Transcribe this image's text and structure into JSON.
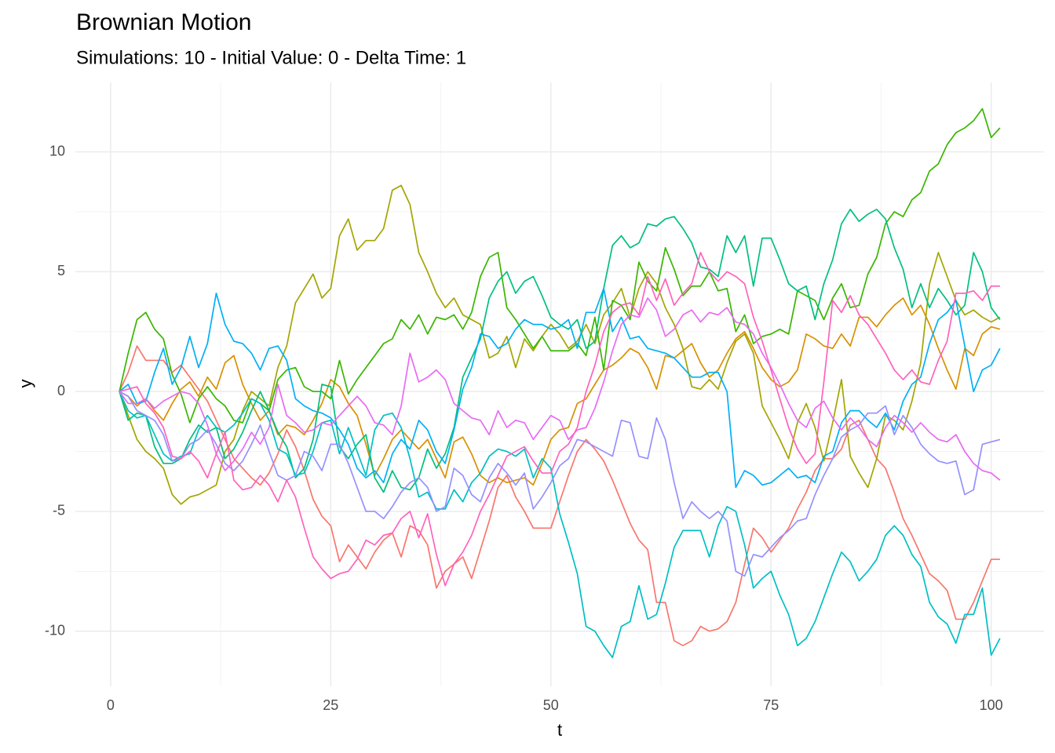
{
  "chart_data": {
    "type": "line",
    "title": "Brownian Motion",
    "subtitle": "Simulations: 10 - Initial Value: 0 - Delta Time: 1",
    "x_label": "t",
    "y_label": "y",
    "xlim": [
      -4,
      106
    ],
    "ylim": [
      -12.3,
      12.9
    ],
    "xticks": [
      0,
      25,
      50,
      75,
      100
    ],
    "yticks": [
      -10,
      -5,
      0,
      5,
      10
    ],
    "x_minor_ticks": [
      12.5,
      37.5,
      62.5,
      87.5
    ],
    "y_minor_ticks": [
      -7.5,
      -2.5,
      2.5,
      7.5
    ],
    "grid": true,
    "x": [
      1,
      2,
      3,
      4,
      5,
      6,
      7,
      8,
      9,
      10,
      11,
      12,
      13,
      14,
      15,
      16,
      17,
      18,
      19,
      20,
      21,
      22,
      23,
      24,
      25,
      26,
      27,
      28,
      29,
      30,
      31,
      32,
      33,
      34,
      35,
      36,
      37,
      38,
      39,
      40,
      41,
      42,
      43,
      44,
      45,
      46,
      47,
      48,
      49,
      50,
      51,
      52,
      53,
      54,
      55,
      56,
      57,
      58,
      59,
      60,
      61,
      62,
      63,
      64,
      65,
      66,
      67,
      68,
      69,
      70,
      71,
      72,
      73,
      74,
      75,
      76,
      77,
      78,
      79,
      80,
      81,
      82,
      83,
      84,
      85,
      86,
      87,
      88,
      89,
      90,
      91,
      92,
      93,
      94,
      95,
      96,
      97,
      98,
      99,
      100,
      101
    ],
    "series": [
      {
        "color": "#F8766D",
        "values": [
          0,
          0.8,
          1.9,
          1.3,
          1.3,
          1.3,
          0.8,
          1.1,
          0.6,
          0.1,
          -0.4,
          -1.2,
          -2.0,
          -2.8,
          -3.2,
          -3.6,
          -3.9,
          -3.4,
          -2.6,
          -1.6,
          -2.3,
          -3.3,
          -4.5,
          -5.2,
          -5.6,
          -7.1,
          -6.4,
          -6.9,
          -7.4,
          -6.7,
          -6.2,
          -5.9,
          -6.9,
          -5.6,
          -5.8,
          -6.4,
          -8.2,
          -7.5,
          -7.2,
          -6.9,
          -7.8,
          -6.6,
          -5.4,
          -4.0,
          -3.5,
          -4.4,
          -5.0,
          -5.7,
          -5.7,
          -5.7,
          -4.6,
          -3.5,
          -2.5,
          -2.0,
          -2.4,
          -2.9,
          -3.7,
          -4.6,
          -5.5,
          -6.2,
          -6.6,
          -8.8,
          -8.8,
          -10.4,
          -10.6,
          -10.4,
          -9.8,
          -10.0,
          -9.9,
          -9.6,
          -8.8,
          -7.2,
          -5.7,
          -6.1,
          -6.7,
          -6.2,
          -5.7,
          -4.9,
          -4.2,
          -3.3,
          -2.8,
          -2.8,
          -2.4,
          -1.4,
          -1.2,
          -2.0,
          -2.8,
          -3.2,
          -4.2,
          -5.3,
          -6.0,
          -6.8,
          -7.6,
          -7.9,
          -8.3,
          -9.5,
          -9.5,
          -8.8,
          -7.9,
          -7.0,
          -7.0
        ]
      },
      {
        "color": "#D89000",
        "values": [
          0,
          -0.2,
          -0.6,
          -0.3,
          -0.8,
          -1.2,
          -0.5,
          0.1,
          0.4,
          -0.2,
          0.6,
          0.1,
          1.2,
          1.5,
          0.3,
          -0.5,
          -1.2,
          -0.8,
          -1.8,
          -1.4,
          -1.5,
          -1.8,
          -1.2,
          -0.5,
          0.5,
          0.2,
          -0.5,
          -1.0,
          -2.2,
          -3.5,
          -2.8,
          -2.0,
          -1.6,
          -2.0,
          -2.4,
          -2.0,
          -2.8,
          -3.6,
          -2.1,
          -1.9,
          -2.6,
          -3.5,
          -3.8,
          -3.6,
          -3.8,
          -3.7,
          -3.6,
          -3.9,
          -3.0,
          -2.0,
          -1.6,
          -1.5,
          -0.5,
          -0.3,
          0.3,
          0.9,
          1.1,
          1.4,
          1.8,
          1.6,
          1.0,
          0.1,
          1.5,
          1.4,
          1.7,
          2.0,
          1.2,
          0.6,
          0.9,
          1.6,
          2.2,
          2.5,
          1.8,
          1.0,
          0.5,
          0.2,
          0.4,
          0.9,
          2.4,
          2.2,
          1.9,
          1.8,
          2.4,
          1.9,
          3.1,
          3.1,
          2.7,
          3.2,
          3.6,
          3.9,
          3.2,
          3.6,
          2.8,
          1.8,
          0.9,
          0.1,
          1.8,
          1.5,
          2.4,
          2.7,
          2.6
        ]
      },
      {
        "color": "#A3A500",
        "values": [
          0,
          -1.0,
          -2.0,
          -2.5,
          -2.8,
          -3.2,
          -4.3,
          -4.7,
          -4.4,
          -4.3,
          -4.1,
          -3.9,
          -2.5,
          -2.0,
          -0.8,
          0.0,
          -0.3,
          -0.6,
          1.0,
          1.9,
          3.7,
          4.3,
          4.9,
          3.9,
          4.3,
          6.5,
          7.2,
          5.9,
          6.3,
          6.3,
          6.8,
          8.4,
          8.6,
          7.8,
          5.8,
          5.0,
          4.1,
          3.5,
          3.9,
          3.2,
          3.0,
          2.8,
          1.4,
          1.6,
          2.3,
          1.0,
          2.2,
          1.7,
          2.3,
          2.8,
          2.4,
          1.8,
          2.1,
          2.8,
          2.0,
          3.2,
          3.7,
          4.3,
          3.1,
          4.3,
          5.0,
          4.5,
          3.5,
          2.8,
          1.8,
          0.2,
          0.1,
          0.5,
          0.1,
          1.2,
          2.1,
          2.4,
          1.6,
          -0.6,
          -1.3,
          -2.0,
          -2.8,
          -1.3,
          -0.5,
          -1.5,
          -2.9,
          -1.3,
          0.5,
          -2.7,
          -3.4,
          -4.0,
          -2.8,
          -1.0,
          -1.2,
          -1.6,
          -0.4,
          1.2,
          4.5,
          5.8,
          4.8,
          3.8,
          3.2,
          3.4,
          3.1,
          2.9,
          3.1
        ]
      },
      {
        "color": "#39B600",
        "values": [
          0,
          1.6,
          3.0,
          3.3,
          2.6,
          2.2,
          0.7,
          -0.1,
          -1.3,
          -0.3,
          0.2,
          -0.3,
          -0.6,
          -1.2,
          -1.3,
          -0.3,
          -0.5,
          -0.8,
          0.5,
          0.9,
          1.0,
          0.2,
          0.0,
          0.0,
          -0.3,
          1.3,
          -0.1,
          0.5,
          1.0,
          1.5,
          2.0,
          2.2,
          3.0,
          2.6,
          3.2,
          2.4,
          3.1,
          3.0,
          3.2,
          2.6,
          3.3,
          4.8,
          5.6,
          5.8,
          3.5,
          3.0,
          2.4,
          1.8,
          2.3,
          1.7,
          1.7,
          1.7,
          2.0,
          1.5,
          3.1,
          0.9,
          3.8,
          3.6,
          3.0,
          5.4,
          4.6,
          4.2,
          6.0,
          5.1,
          4.0,
          4.4,
          4.4,
          5.0,
          4.2,
          4.3,
          2.5,
          3.2,
          2.0,
          2.3,
          2.4,
          2.6,
          2.4,
          4.2,
          4.0,
          3.8,
          3.0,
          3.9,
          4.5,
          3.5,
          3.6,
          4.9,
          5.6,
          7.0,
          7.5,
          7.3,
          8.0,
          8.3,
          9.2,
          9.5,
          10.3,
          10.8,
          11.0,
          11.3,
          11.8,
          10.6,
          11.0
        ]
      },
      {
        "color": "#00BF7D",
        "values": [
          0,
          -1.2,
          -0.9,
          -1.0,
          -2.3,
          -3.0,
          -3.0,
          -2.8,
          -2.0,
          -1.4,
          -1.7,
          -1.5,
          -2.8,
          -2.4,
          -1.7,
          -0.8,
          0.0,
          -0.8,
          -1.7,
          -2.3,
          -3.6,
          -3.2,
          -2.0,
          0.3,
          0.2,
          -2.3,
          -2.8,
          -2.2,
          -1.8,
          -3.6,
          -4.2,
          -3.3,
          -4.0,
          -4.1,
          -3.6,
          -2.4,
          -3.2,
          -2.6,
          -1.5,
          0.6,
          1.4,
          2.2,
          3.9,
          4.6,
          5.0,
          4.1,
          4.6,
          4.8,
          4.0,
          3.1,
          2.8,
          2.6,
          3.0,
          1.8,
          2.1,
          4.3,
          6.1,
          6.5,
          6.0,
          6.2,
          7.0,
          6.9,
          7.2,
          7.3,
          6.8,
          6.2,
          5.2,
          5.1,
          4.8,
          6.5,
          5.8,
          6.5,
          4.4,
          6.4,
          6.4,
          5.5,
          4.5,
          4.2,
          4.4,
          3.0,
          4.5,
          5.5,
          7.0,
          7.6,
          7.1,
          7.4,
          7.6,
          7.2,
          6.0,
          5.1,
          3.5,
          4.5,
          3.5,
          4.3,
          3.8,
          3.2,
          3.6,
          5.8,
          5.0,
          3.5,
          3.0
        ]
      },
      {
        "color": "#00BFC4",
        "values": [
          0,
          -0.8,
          -1.1,
          -1.0,
          -1.8,
          -2.6,
          -2.9,
          -2.7,
          -2.6,
          -1.6,
          -1.0,
          -1.5,
          -1.7,
          -1.4,
          -0.9,
          -0.3,
          -0.5,
          -1.2,
          -2.4,
          -2.6,
          -3.5,
          -3.4,
          -2.5,
          -1.3,
          -1.2,
          -2.6,
          -1.5,
          -2.5,
          -3.5,
          -1.6,
          -1.0,
          -0.9,
          -1.5,
          -2.8,
          -4.4,
          -4.2,
          -4.9,
          -4.9,
          -4.1,
          -4.6,
          -3.8,
          -3.4,
          -2.7,
          -2.4,
          -2.5,
          -2.7,
          -2.4,
          -3.6,
          -2.8,
          -3.2,
          -5.1,
          -6.3,
          -7.6,
          -9.8,
          -10.0,
          -10.6,
          -11.1,
          -9.8,
          -9.6,
          -8.1,
          -9.5,
          -9.3,
          -8.0,
          -6.5,
          -5.8,
          -5.8,
          -5.8,
          -6.9,
          -5.6,
          -4.8,
          -5.0,
          -6.4,
          -8.2,
          -7.8,
          -7.5,
          -8.5,
          -9.3,
          -10.6,
          -10.3,
          -9.6,
          -8.6,
          -7.6,
          -6.7,
          -7.1,
          -7.9,
          -7.5,
          -7.0,
          -6.0,
          -5.6,
          -6.0,
          -6.8,
          -7.3,
          -8.8,
          -9.4,
          -9.7,
          -10.5,
          -9.3,
          -9.3,
          -8.2,
          -11.0,
          -10.3
        ]
      },
      {
        "color": "#00B0F6",
        "values": [
          0,
          0.3,
          -0.5,
          -0.4,
          0.8,
          1.8,
          0.3,
          1.0,
          2.3,
          1.0,
          2.0,
          4.1,
          2.8,
          2.1,
          2.0,
          1.6,
          0.9,
          1.8,
          1.9,
          1.3,
          -0.3,
          -0.6,
          -0.8,
          -0.9,
          -1.1,
          -1.6,
          -2.2,
          -3.2,
          -3.6,
          -3.3,
          -3.8,
          -2.6,
          -2.0,
          -2.4,
          -1.2,
          -1.6,
          -2.5,
          -3.0,
          -1.6,
          0.1,
          1.0,
          2.4,
          2.3,
          1.8,
          2.0,
          2.6,
          3.0,
          2.8,
          2.8,
          2.6,
          2.7,
          3.0,
          1.8,
          3.3,
          3.3,
          4.3,
          2.5,
          3.1,
          2.2,
          2.3,
          1.8,
          1.7,
          1.6,
          1.4,
          1.0,
          0.6,
          0.6,
          0.8,
          0.8,
          0.0,
          -4.0,
          -3.3,
          -3.5,
          -3.9,
          -3.8,
          -3.5,
          -3.2,
          -3.6,
          -3.5,
          -3.8,
          -2.7,
          -2.5,
          -1.3,
          -0.8,
          -0.8,
          -1.2,
          -1.5,
          -0.9,
          -1.6,
          -0.4,
          0.3,
          0.6,
          2.0,
          3.0,
          3.3,
          3.8,
          1.9,
          0.0,
          0.9,
          1.1,
          1.8
        ]
      },
      {
        "color": "#9590FF",
        "values": [
          0,
          -0.2,
          -0.8,
          -1.0,
          -1.2,
          -1.8,
          -2.9,
          -2.8,
          -2.2,
          -2.0,
          -1.6,
          -2.2,
          -3.0,
          -3.3,
          -2.9,
          -2.2,
          -1.4,
          -2.5,
          -3.5,
          -3.7,
          -3.5,
          -2.5,
          -2.7,
          -3.3,
          -2.2,
          -2.2,
          -3.0,
          -4.0,
          -5.0,
          -5.0,
          -5.3,
          -4.8,
          -4.2,
          -3.8,
          -3.6,
          -4.0,
          -5.0,
          -4.8,
          -3.2,
          -3.5,
          -4.3,
          -4.6,
          -3.6,
          -3.0,
          -3.4,
          -3.9,
          -3.4,
          -4.9,
          -4.4,
          -3.8,
          -3.1,
          -2.8,
          -2.0,
          -2.1,
          -2.3,
          -2.5,
          -2.7,
          -1.2,
          -1.3,
          -2.7,
          -2.8,
          -1.1,
          -2.0,
          -3.8,
          -5.3,
          -4.6,
          -5.0,
          -5.3,
          -5.0,
          -5.4,
          -7.5,
          -7.7,
          -6.8,
          -6.9,
          -6.5,
          -6.1,
          -5.8,
          -5.4,
          -5.3,
          -4.3,
          -3.5,
          -2.8,
          -1.9,
          -1.6,
          -1.4,
          -0.9,
          -0.9,
          -0.6,
          -1.8,
          -1.0,
          -1.5,
          -2.2,
          -2.6,
          -2.9,
          -3.0,
          -2.9,
          -4.3,
          -4.1,
          -2.2,
          -2.1,
          -2.0
        ]
      },
      {
        "color": "#E76BF3",
        "values": [
          0,
          -0.5,
          -0.5,
          -0.3,
          -0.7,
          -0.4,
          -0.2,
          0.0,
          -0.1,
          -0.5,
          -1.4,
          -2.6,
          -3.3,
          -2.9,
          -2.4,
          -1.7,
          -2.2,
          -1.5,
          0.3,
          -1.0,
          -1.3,
          -1.7,
          -1.6,
          -1.3,
          -1.4,
          -1.0,
          -0.6,
          -0.2,
          -0.6,
          -1.3,
          -1.4,
          -1.8,
          -0.6,
          1.6,
          0.4,
          0.6,
          0.9,
          0.5,
          -0.5,
          -0.8,
          -1.1,
          -1.2,
          -1.8,
          -0.8,
          -1.5,
          -1.2,
          -1.3,
          -2.0,
          -1.5,
          -1.0,
          -1.2,
          -2.0,
          -1.6,
          -1.5,
          -0.7,
          0.4,
          1.7,
          2.8,
          3.2,
          3.1,
          3.9,
          3.4,
          2.3,
          2.6,
          3.2,
          3.4,
          2.9,
          3.3,
          3.2,
          3.5,
          2.9,
          2.8,
          2.4,
          1.6,
          1.0,
          0.3,
          -0.5,
          -1.2,
          -1.5,
          -0.7,
          -0.4,
          -1.1,
          -1.6,
          -1.1,
          -1.5,
          -2.0,
          -2.3,
          -1.5,
          -1.0,
          -1.3,
          -1.7,
          -1.3,
          -1.7,
          -2.0,
          -2.1,
          -1.8,
          -2.5,
          -3.0,
          -3.3,
          -3.4,
          -3.7
        ]
      },
      {
        "color": "#FF62BC",
        "values": [
          0,
          0.1,
          0.2,
          -0.5,
          -0.9,
          -1.5,
          -2.7,
          -2.8,
          -2.5,
          -2.9,
          -3.6,
          -2.6,
          -1.7,
          -3.7,
          -4.1,
          -4.0,
          -3.5,
          -3.9,
          -4.6,
          -3.7,
          -4.4,
          -5.7,
          -6.9,
          -7.4,
          -7.8,
          -7.6,
          -7.5,
          -7.0,
          -6.2,
          -6.4,
          -6.0,
          -5.9,
          -5.3,
          -5.0,
          -6.1,
          -5.1,
          -6.8,
          -8.1,
          -7.2,
          -6.7,
          -6.0,
          -5.0,
          -4.3,
          -3.5,
          -2.7,
          -2.5,
          -2.3,
          -2.9,
          -3.4,
          -3.4,
          -2.5,
          -2.2,
          -1.5,
          0.0,
          1.1,
          2.5,
          3.3,
          3.6,
          3.7,
          3.2,
          4.8,
          3.8,
          4.7,
          3.6,
          4.1,
          4.5,
          5.8,
          5.0,
          4.6,
          5.0,
          4.8,
          4.5,
          3.1,
          2.1,
          0.9,
          -0.3,
          -1.5,
          -2.4,
          -3.0,
          -2.6,
          0.4,
          3.8,
          3.3,
          4.0,
          3.2,
          2.8,
          2.2,
          1.6,
          0.9,
          0.5,
          0.9,
          0.4,
          0.3,
          1.3,
          2.1,
          4.1,
          4.1,
          4.2,
          3.8,
          4.4,
          4.4
        ]
      }
    ]
  }
}
